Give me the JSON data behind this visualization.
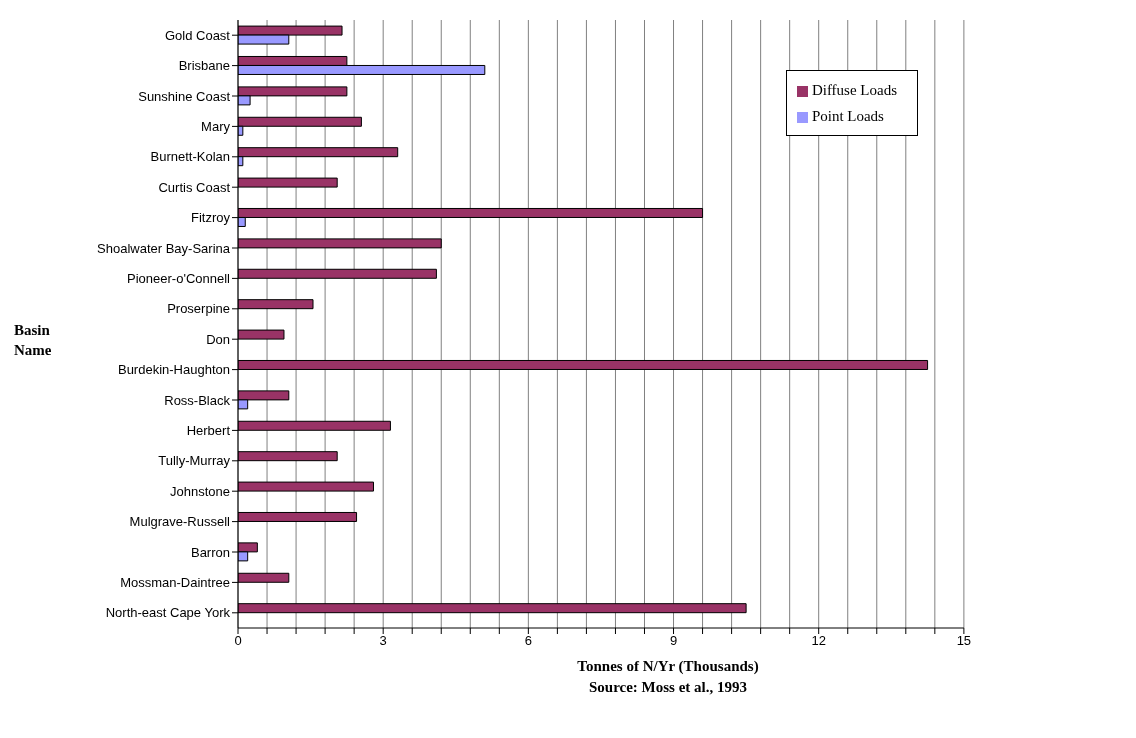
{
  "chart_data": {
    "type": "bar",
    "orientation": "horizontal",
    "xlabel": "Tonnes of N/Yr (Thousands)",
    "ylabel": "Basin Name",
    "annotations": [
      "Source: Moss et al., 1993"
    ],
    "categories": [
      "Gold Coast",
      "Brisbane",
      "Sunshine Coast",
      "Mary",
      "Burnett-Kolan",
      "Curtis Coast",
      "Fitzroy",
      "Shoalwater Bay-Sarina",
      "Pioneer-o'Connell",
      "Proserpine",
      "Don",
      "Burdekin-Haughton",
      "Ross-Black",
      "Herbert",
      "Tully-Murray",
      "Johnstone",
      "Mulgrave-Russell",
      "Barron",
      "Mossman-Daintree",
      "North-east Cape York"
    ],
    "series": [
      {
        "name": "Diffuse Loads",
        "color": "#993366",
        "values": [
          2.15,
          2.25,
          2.25,
          2.55,
          3.3,
          2.05,
          9.6,
          4.2,
          4.1,
          1.55,
          0.95,
          14.25,
          1.05,
          3.15,
          2.05,
          2.8,
          2.45,
          0.4,
          1.05,
          10.5
        ]
      },
      {
        "name": "Point Loads",
        "color": "#9999ff",
        "values": [
          1.05,
          5.1,
          0.25,
          0.1,
          0.1,
          null,
          0.15,
          null,
          null,
          null,
          null,
          null,
          0.2,
          null,
          null,
          null,
          null,
          0.2,
          null,
          null
        ]
      }
    ],
    "xlim": [
      0,
      15
    ],
    "xticks": [
      0,
      {
        "value": 0.6,
        "label": null
      },
      {
        "value": 1.2,
        "label": null
      },
      {
        "value": 1.8,
        "label": null
      },
      {
        "value": 2.4,
        "label": null
      },
      3,
      {
        "value": 3.6,
        "label": null
      },
      {
        "value": 4.2,
        "label": null
      },
      {
        "value": 4.8,
        "label": null
      },
      {
        "value": 5.4,
        "label": null
      },
      6,
      {
        "value": 6.6,
        "label": null
      },
      {
        "value": 7.2,
        "label": null
      },
      {
        "value": 7.8,
        "label": null
      },
      {
        "value": 8.4,
        "label": null
      },
      9,
      {
        "value": 9.6,
        "label": null
      },
      {
        "value": 10.2,
        "label": null
      },
      {
        "value": 10.8,
        "label": null
      },
      {
        "value": 11.4,
        "label": null
      },
      12,
      {
        "value": 12.6,
        "label": null
      },
      {
        "value": 13.2,
        "label": null
      },
      {
        "value": 13.8,
        "label": null
      },
      {
        "value": 14.4,
        "label": null
      },
      15
    ],
    "grid": "x",
    "legend": "top right"
  }
}
